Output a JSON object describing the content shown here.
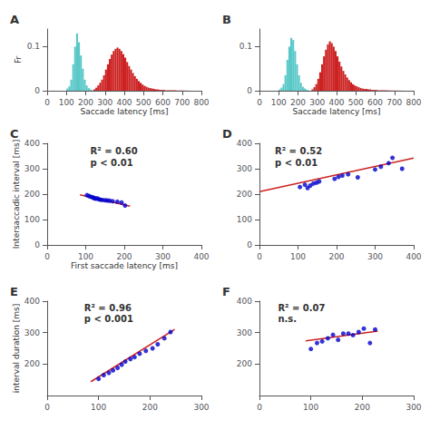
{
  "chart_data": [
    {
      "type": "histogram",
      "title": "A",
      "xlabel": "Saccade latency [ms]",
      "ylabel": "Fr",
      "xlim": [
        0,
        800
      ],
      "ylim": [
        0,
        0.14
      ],
      "xticks": [
        0,
        100,
        200,
        300,
        400,
        500,
        600,
        700,
        800
      ],
      "yticks": [
        0,
        0.1
      ],
      "grid": false,
      "series": [
        {
          "color": "#5BC8C8",
          "bins": [
            100,
            110,
            120,
            130,
            140,
            150,
            160,
            170,
            180,
            190,
            200,
            210,
            220,
            230,
            240
          ],
          "values": [
            0.005,
            0.01,
            0.025,
            0.06,
            0.1,
            0.13,
            0.11,
            0.08,
            0.05,
            0.025,
            0.012,
            0.006,
            0.003,
            0.001
          ]
        },
        {
          "color": "#CC2222",
          "bins": [
            240,
            250,
            260,
            270,
            280,
            290,
            300,
            310,
            320,
            330,
            340,
            350,
            360,
            370,
            380,
            390,
            400,
            410,
            420,
            430,
            440,
            450,
            460,
            470,
            480,
            490,
            500,
            510,
            520,
            530,
            540,
            550,
            560,
            570,
            580,
            590,
            600,
            610,
            620,
            630,
            640,
            650,
            660,
            670,
            680,
            690,
            700,
            710,
            720,
            730,
            740
          ],
          "values": [
            0.003,
            0.007,
            0.012,
            0.018,
            0.025,
            0.035,
            0.048,
            0.06,
            0.072,
            0.082,
            0.09,
            0.095,
            0.098,
            0.095,
            0.09,
            0.083,
            0.075,
            0.065,
            0.056,
            0.048,
            0.04,
            0.033,
            0.027,
            0.022,
            0.018,
            0.014,
            0.011,
            0.009,
            0.007,
            0.006,
            0.005,
            0.004,
            0.003,
            0.003,
            0.002,
            0.002,
            0.002,
            0.001,
            0.001,
            0.001,
            0.001,
            0.001,
            0.001,
            0.0005,
            0.0005,
            0.0005,
            0.0005,
            0.0003,
            0.0003,
            0.0002
          ]
        }
      ]
    },
    {
      "type": "histogram",
      "title": "B",
      "xlabel": "Saccade latency [ms]",
      "xlim": [
        0,
        800
      ],
      "ylim": [
        0,
        0.14
      ],
      "xticks": [
        0,
        100,
        200,
        300,
        400,
        500,
        600,
        700,
        800
      ],
      "yticks": [
        0,
        0.1
      ],
      "grid": false,
      "series": [
        {
          "color": "#5BC8C8",
          "bins": [
            100,
            110,
            120,
            130,
            140,
            150,
            160,
            170,
            180,
            190,
            200,
            210,
            220,
            230,
            240,
            250,
            260
          ],
          "values": [
            0.003,
            0.007,
            0.015,
            0.035,
            0.07,
            0.1,
            0.12,
            0.115,
            0.09,
            0.06,
            0.035,
            0.018,
            0.009,
            0.005,
            0.002,
            0.001
          ]
        },
        {
          "color": "#CC2222",
          "bins": [
            270,
            280,
            290,
            300,
            310,
            320,
            330,
            340,
            350,
            360,
            370,
            380,
            390,
            400,
            410,
            420,
            430,
            440,
            450,
            460,
            470,
            480,
            490,
            500,
            510,
            520,
            530,
            540,
            550,
            560,
            570,
            580,
            590,
            600,
            610,
            620,
            630,
            640,
            650,
            660,
            670,
            680,
            690,
            700,
            710,
            720,
            730,
            740,
            750,
            760,
            770,
            780,
            790,
            800
          ],
          "values": [
            0.003,
            0.008,
            0.015,
            0.027,
            0.042,
            0.06,
            0.078,
            0.093,
            0.105,
            0.112,
            0.108,
            0.1,
            0.09,
            0.078,
            0.066,
            0.055,
            0.045,
            0.037,
            0.03,
            0.024,
            0.019,
            0.015,
            0.012,
            0.01,
            0.008,
            0.006,
            0.005,
            0.004,
            0.004,
            0.003,
            0.003,
            0.002,
            0.002,
            0.002,
            0.001,
            0.001,
            0.001,
            0.001,
            0.001,
            0.0008,
            0.0006,
            0.0005,
            0.0004,
            0.0004,
            0.0003,
            0.0003,
            0.0002,
            0.0002,
            0.0001,
            0.0001,
            0.0001,
            0.0001,
            0.0001
          ]
        }
      ]
    },
    {
      "type": "scatter",
      "title": "C",
      "xlabel": "First saccade latency [ms]",
      "ylabel": "Intersaccadic interval [ms]",
      "xlim": [
        0,
        400
      ],
      "ylim": [
        0,
        400
      ],
      "xticks": [
        0,
        100,
        200,
        300,
        400
      ],
      "yticks": [
        0,
        100,
        200,
        300,
        400
      ],
      "grid": false,
      "annotations": [
        "R² = 0.60",
        "p < 0.01"
      ],
      "series": [
        {
          "type": "scatter",
          "color": "#0000CC",
          "x": [
            103,
            108,
            112,
            117,
            120,
            122,
            126,
            130,
            134,
            138,
            143,
            150,
            156,
            162,
            170,
            182,
            193,
            202
          ],
          "values": [
            196,
            193,
            190,
            188,
            186,
            184,
            182,
            183,
            180,
            178,
            177,
            176,
            175,
            174,
            172,
            170,
            167,
            155
          ]
        },
        {
          "type": "line",
          "color": "#CC2222",
          "x": [
            85,
            215
          ],
          "values": [
            197,
            153
          ]
        }
      ]
    },
    {
      "type": "scatter",
      "title": "D",
      "xlim": [
        0,
        400
      ],
      "ylim": [
        0,
        400
      ],
      "xticks": [
        0,
        100,
        200,
        300,
        400
      ],
      "yticks": [
        0,
        100,
        200,
        300,
        400
      ],
      "grid": false,
      "annotations": [
        "R² = 0.52",
        "p < 0.01"
      ],
      "series": [
        {
          "type": "scatter",
          "color": "#0000CC",
          "x": [
            105,
            118,
            125,
            132,
            140,
            148,
            155,
            195,
            205,
            215,
            230,
            255,
            300,
            315,
            335,
            345,
            370
          ],
          "values": [
            228,
            237,
            224,
            234,
            242,
            245,
            250,
            260,
            268,
            273,
            278,
            266,
            297,
            308,
            322,
            343,
            300
          ]
        },
        {
          "type": "line",
          "color": "#CC2222",
          "x": [
            0,
            400
          ],
          "values": [
            210,
            342
          ]
        }
      ]
    },
    {
      "type": "scatter",
      "title": "E",
      "ylabel": "interval duration [ms]",
      "xlim": [
        0,
        300
      ],
      "ylim": [
        100,
        400
      ],
      "xticks": [
        0,
        100,
        200,
        300
      ],
      "yticks": [
        200,
        300,
        400
      ],
      "grid": false,
      "annotations": [
        "R² = 0.96",
        "p < 0.001"
      ],
      "series": [
        {
          "type": "scatter",
          "color": "#0000CC",
          "x": [
            100,
            110,
            120,
            128,
            137,
            145,
            152,
            162,
            170,
            180,
            192,
            205,
            215,
            228,
            240
          ],
          "values": [
            153,
            165,
            172,
            180,
            188,
            198,
            208,
            216,
            222,
            233,
            242,
            250,
            263,
            282,
            302
          ]
        },
        {
          "type": "line",
          "color": "#CC2222",
          "x": [
            85,
            248
          ],
          "values": [
            144,
            310
          ]
        }
      ]
    },
    {
      "type": "scatter",
      "title": "F",
      "xlim": [
        0,
        300
      ],
      "ylim": [
        100,
        400
      ],
      "xticks": [
        0,
        100,
        200,
        300
      ],
      "yticks": [
        200,
        300,
        400
      ],
      "grid": false,
      "annotations": [
        "R² = 0.07",
        "n.s."
      ],
      "series": [
        {
          "type": "scatter",
          "color": "#0000CC",
          "x": [
            100,
            112,
            122,
            133,
            143,
            153,
            163,
            173,
            182,
            193,
            203,
            215,
            225
          ],
          "values": [
            248,
            267,
            272,
            282,
            293,
            277,
            297,
            297,
            292,
            302,
            313,
            267,
            310
          ]
        },
        {
          "type": "line",
          "color": "#CC2222",
          "x": [
            90,
            230
          ],
          "values": [
            274,
            305
          ]
        }
      ]
    }
  ]
}
